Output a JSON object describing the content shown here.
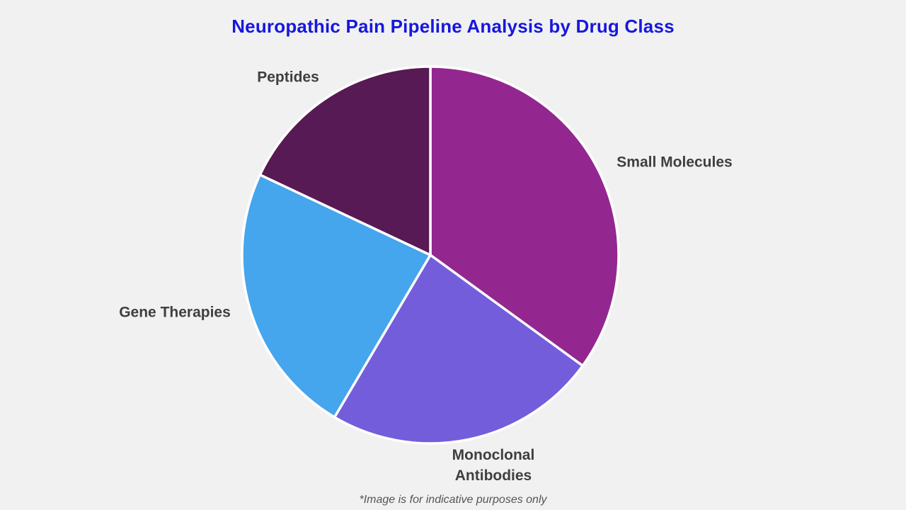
{
  "page": {
    "background_color": "#f1f1f1"
  },
  "title": {
    "text": "Neuropathic Pain Pipeline Analysis by Drug Class",
    "color": "#1717df"
  },
  "footnote": {
    "text": "*Image is for indicative purposes only",
    "color": "#555555"
  },
  "chart_data": {
    "type": "pie",
    "title": "Neuropathic Pain Pipeline Analysis by Drug Class",
    "unit": "percent-share (estimated from slice angles)",
    "start_angle_deg": 0,
    "direction": "clockwise",
    "legend": "none",
    "label_color": "#3f3f3f",
    "divider_color": "#ffffff",
    "segments": [
      {
        "label": "Small Molecules",
        "label_display": "Small Molecules",
        "value": 35,
        "color": "#93278F"
      },
      {
        "label": "Monoclonal Antibodies",
        "label_display": "Monoclonal\nAntibodies",
        "value": 23.5,
        "color": "#745DDB"
      },
      {
        "label": "Gene Therapies",
        "label_display": "Gene Therapies",
        "value": 23.5,
        "color": "#45A5ED"
      },
      {
        "label": "Peptides",
        "label_display": "Peptides",
        "value": 18,
        "color": "#571A54"
      }
    ]
  }
}
